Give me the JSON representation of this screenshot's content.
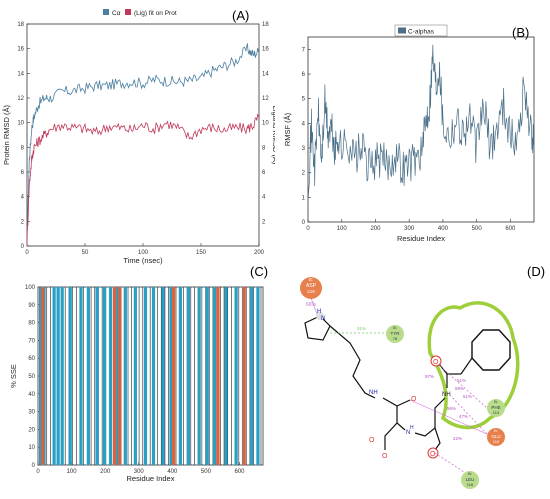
{
  "chart_data": [
    {
      "panel": "(A)",
      "type": "line",
      "xlabel": "Time (nsec)",
      "ylabel": "Protein RMSD (Å)",
      "ylabel_right": "Ligand RMSD (Å)",
      "xlim": [
        0,
        200
      ],
      "ylim": [
        0,
        18
      ],
      "ylim_right": [
        0,
        18
      ],
      "x_ticks": [
        "0",
        "50",
        "100",
        "150",
        "200"
      ],
      "y_ticks": [
        "0",
        "2",
        "4",
        "6",
        "8",
        "10",
        "12",
        "14",
        "16",
        "18"
      ],
      "y_ticks_right": [
        "2",
        "4",
        "6",
        "8",
        "10",
        "12",
        "14",
        "16",
        "18"
      ],
      "legend_position": "top",
      "series": [
        {
          "name": "Cα",
          "color": "#4a7fa0",
          "x": [
            0,
            2,
            4,
            6,
            10,
            15,
            20,
            30,
            40,
            50,
            60,
            70,
            80,
            90,
            100,
            110,
            120,
            130,
            140,
            150,
            160,
            170,
            180,
            190,
            195,
            200
          ],
          "y": [
            0.5,
            7,
            9.5,
            10.5,
            11.5,
            12,
            12,
            12.5,
            12.6,
            12.8,
            13,
            13,
            13.2,
            13.3,
            13.2,
            13.5,
            13.4,
            13.3,
            13.4,
            13.6,
            14.2,
            14.6,
            15,
            16,
            15.5,
            15.8
          ]
        },
        {
          "name": "(Lig) fit on Prot",
          "color": "#c0395a",
          "x": [
            0,
            2,
            4,
            6,
            10,
            15,
            20,
            30,
            40,
            50,
            60,
            70,
            80,
            90,
            100,
            110,
            120,
            130,
            140,
            150,
            160,
            170,
            180,
            190,
            195,
            200
          ],
          "y": [
            0.3,
            5,
            7,
            8,
            8.5,
            9,
            9.5,
            9.8,
            9.6,
            9.5,
            9.2,
            9.7,
            9.6,
            9.4,
            9.8,
            9.5,
            10,
            9.6,
            8.8,
            9.5,
            9.6,
            9.4,
            9.6,
            9.5,
            9.8,
            10.5
          ]
        }
      ]
    },
    {
      "panel": "(B)",
      "type": "line",
      "xlabel": "Residue Index",
      "ylabel": "RMSF (Å)",
      "xlim": [
        0,
        670
      ],
      "ylim": [
        0,
        7.5
      ],
      "x_ticks": [
        "0",
        "100",
        "200",
        "300",
        "400",
        "500",
        "600"
      ],
      "y_ticks": [
        "0",
        "1",
        "2",
        "3",
        "4",
        "5",
        "6",
        "7"
      ],
      "legend_position": "top",
      "series": [
        {
          "name": "C-alphas",
          "color": "#4a6f88",
          "x": [
            0,
            10,
            20,
            30,
            40,
            50,
            60,
            70,
            80,
            90,
            100,
            120,
            140,
            160,
            180,
            200,
            220,
            240,
            260,
            280,
            300,
            320,
            340,
            350,
            360,
            370,
            380,
            390,
            400,
            420,
            440,
            460,
            480,
            500,
            520,
            540,
            560,
            580,
            600,
            620,
            640,
            660,
            670
          ],
          "y": [
            1.5,
            3.8,
            2.2,
            4.5,
            2.5,
            4.8,
            3.5,
            3.8,
            2.8,
            3.5,
            3,
            3.2,
            2.6,
            3,
            2.2,
            2.5,
            2.5,
            2.3,
            2.8,
            2.2,
            2.4,
            2.6,
            3,
            4.2,
            4.8,
            6.8,
            5.5,
            6.5,
            4,
            3.5,
            4.2,
            3.6,
            4.2,
            3,
            4.8,
            3,
            3.8,
            4.8,
            3.5,
            3.2,
            5.5,
            3.8,
            3
          ]
        }
      ]
    },
    {
      "panel": "(C)",
      "type": "bar",
      "xlabel": "Residue Index",
      "ylabel": "% SSE",
      "xlim": [
        0,
        670
      ],
      "ylim": [
        0,
        100
      ],
      "x_ticks": [
        "0",
        "100",
        "200",
        "300",
        "400",
        "500",
        "600"
      ],
      "y_ticks": [
        "0",
        "10",
        "20",
        "30",
        "40",
        "50",
        "60",
        "70",
        "80",
        "90",
        "100"
      ],
      "series": [
        {
          "name": "",
          "color": "#27a0c4",
          "x": [
            8,
            18,
            48,
            60,
            72,
            96,
            128,
            150,
            176,
            198,
            216,
            236,
            260,
            290,
            320,
            344,
            372,
            396,
            424,
            448,
            480,
            504,
            526,
            560,
            590,
            612,
            636,
            655
          ],
          "values": [
            100,
            100,
            100,
            100,
            100,
            100,
            100,
            100,
            100,
            100,
            100,
            100,
            100,
            100,
            100,
            100,
            100,
            100,
            100,
            100,
            100,
            100,
            100,
            100,
            100,
            100,
            100,
            100
          ]
        },
        {
          "name": "",
          "color": "#e0603c",
          "x": [
            14,
            228,
            244,
            404,
            536,
            614
          ],
          "values": [
            100,
            100,
            100,
            100,
            100,
            100
          ]
        }
      ]
    }
  ],
  "panelA": {
    "label": "(A)",
    "legend_ca": "Cα",
    "legend_lig": "(Lig) fit on Prot"
  },
  "panelB": {
    "label": "(B)",
    "legend": "C-alphas"
  },
  "panelC": {
    "label": "(C)"
  },
  "panelD": {
    "label": "(D)",
    "residues": [
      {
        "chain": "B:",
        "name": "ASP",
        "num": "219",
        "pct": "66%",
        "color": "#e8804e"
      },
      {
        "chain": "B:",
        "name": "TYR",
        "num": "78",
        "pct": "",
        "color": "#b8dc8a"
      },
      {
        "chain": "B:",
        "name": "PHE",
        "num": "113",
        "pct": "",
        "color": "#b8dc8a"
      },
      {
        "chain": "B:",
        "name": "GLU",
        "num": "119",
        "pct": "",
        "color": "#e8804e"
      },
      {
        "chain": "B:",
        "name": "LEU",
        "num": "116",
        "pct": "",
        "color": "#b8dc8a"
      }
    ],
    "interaction_pcts": [
      "31%",
      "97%",
      "51%",
      "59%",
      "51%",
      "56%",
      "47%",
      "22%"
    ],
    "atoms": {
      "n": "N",
      "h": "H",
      "o": "O",
      "nh": "NH",
      "nplus": "N",
      "h2": "H"
    }
  }
}
